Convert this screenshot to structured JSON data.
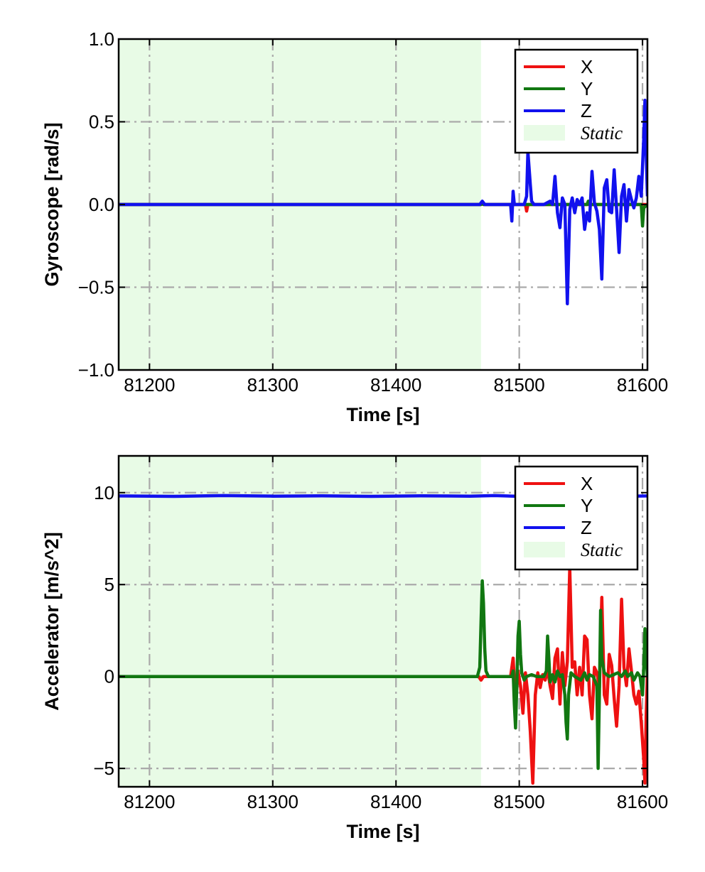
{
  "colors": {
    "x": "#ee1111",
    "y": "#117711",
    "z": "#1111ee",
    "static": "#e8fbe6",
    "grid": "#aaaaaa"
  },
  "chart_data": [
    {
      "type": "line",
      "xlabel": "Time [s]",
      "ylabel": "Gyroscope [rad/s]",
      "xlim": [
        81175,
        81604
      ],
      "ylim": [
        -1.0,
        1.0
      ],
      "xticks": [
        81200,
        81300,
        81400,
        81500,
        81600
      ],
      "yticks": [
        -1.0,
        -0.5,
        0.0,
        0.5,
        1.0
      ],
      "ytick_labels": [
        "−1.0",
        "−0.5",
        "0.0",
        "0.5",
        "1.0"
      ],
      "grid": true,
      "legend_position": "top-right",
      "static_region": [
        81175,
        81469
      ],
      "series": [
        {
          "name": "X",
          "color": "#ee1111",
          "points": [
            [
              81175,
              0
            ],
            [
              81469,
              0
            ],
            [
              81470,
              0.01
            ],
            [
              81471,
              0
            ],
            [
              81505,
              0
            ],
            [
              81506,
              -0.04
            ],
            [
              81507,
              0
            ],
            [
              81600,
              0
            ],
            [
              81604,
              0
            ]
          ]
        },
        {
          "name": "Y",
          "color": "#117711",
          "points": [
            [
              81175,
              0
            ],
            [
              81469,
              0
            ],
            [
              81470,
              0.01
            ],
            [
              81471,
              0
            ],
            [
              81555,
              0
            ],
            [
              81556,
              0.02
            ],
            [
              81557,
              0
            ],
            [
              81599,
              0
            ],
            [
              81600,
              -0.13
            ],
            [
              81601,
              -0.02
            ],
            [
              81604,
              0
            ]
          ]
        },
        {
          "name": "Z",
          "color": "#1111ee",
          "points": [
            [
              81175,
              0
            ],
            [
              81468,
              0
            ],
            [
              81470,
              0.02
            ],
            [
              81472,
              0
            ],
            [
              81493,
              0
            ],
            [
              81494,
              -0.1
            ],
            [
              81495,
              0.08
            ],
            [
              81496,
              0
            ],
            [
              81504,
              0
            ],
            [
              81506,
              0.05
            ],
            [
              81507,
              0.32
            ],
            [
              81509,
              0.12
            ],
            [
              81510,
              0.02
            ],
            [
              81512,
              0
            ],
            [
              81520,
              0
            ],
            [
              81525,
              0.02
            ],
            [
              81527,
              0
            ],
            [
              81529,
              0.17
            ],
            [
              81531,
              -0.05
            ],
            [
              81533,
              -0.14
            ],
            [
              81535,
              0.04
            ],
            [
              81537,
              0
            ],
            [
              81539,
              -0.6
            ],
            [
              81541,
              -0.03
            ],
            [
              81543,
              0.04
            ],
            [
              81545,
              -0.05
            ],
            [
              81547,
              0.03
            ],
            [
              81549,
              0
            ],
            [
              81551,
              0.04
            ],
            [
              81553,
              -0.15
            ],
            [
              81555,
              -0.05
            ],
            [
              81557,
              -0.1
            ],
            [
              81559,
              0.2
            ],
            [
              81561,
              0.01
            ],
            [
              81563,
              -0.04
            ],
            [
              81565,
              -0.15
            ],
            [
              81567,
              -0.45
            ],
            [
              81569,
              0.1
            ],
            [
              81571,
              0.15
            ],
            [
              81573,
              -0.04
            ],
            [
              81575,
              -0.05
            ],
            [
              81577,
              0.21
            ],
            [
              81579,
              -0.03
            ],
            [
              81581,
              -0.29
            ],
            [
              81583,
              0.05
            ],
            [
              81585,
              0.12
            ],
            [
              81587,
              -0.1
            ],
            [
              81589,
              0.09
            ],
            [
              81591,
              0.03
            ],
            [
              81593,
              -0.02
            ],
            [
              81595,
              0.04
            ],
            [
              81597,
              0.17
            ],
            [
              81599,
              0.05
            ],
            [
              81601,
              0.4
            ],
            [
              81602,
              0.63
            ],
            [
              81603,
              0.3
            ],
            [
              81604,
              0.05
            ]
          ]
        }
      ]
    },
    {
      "type": "line",
      "xlabel": "Time [s]",
      "ylabel": "Accelerator [m/s^2]",
      "xlim": [
        81175,
        81604
      ],
      "ylim": [
        -6.0,
        12.0
      ],
      "xticks": [
        81200,
        81300,
        81400,
        81500,
        81600
      ],
      "yticks": [
        -5,
        0,
        5,
        10
      ],
      "ytick_labels": [
        "−5",
        "0",
        "5",
        "10"
      ],
      "grid": true,
      "legend_position": "top-right",
      "static_region": [
        81175,
        81469
      ],
      "series": [
        {
          "name": "X",
          "color": "#ee1111",
          "points": [
            [
              81175,
              0
            ],
            [
              81467,
              0
            ],
            [
              81469,
              -0.2
            ],
            [
              81471,
              0
            ],
            [
              81493,
              0
            ],
            [
              81495,
              1.0
            ],
            [
              81497,
              -1.5
            ],
            [
              81499,
              0.3
            ],
            [
              81501,
              -0.5
            ],
            [
              81503,
              -2.0
            ],
            [
              81505,
              0.2
            ],
            [
              81507,
              -1.0
            ],
            [
              81509,
              -3.0
            ],
            [
              81511,
              -5.8
            ],
            [
              81513,
              -1.0
            ],
            [
              81515,
              0.2
            ],
            [
              81517,
              -0.6
            ],
            [
              81519,
              0.1
            ],
            [
              81521,
              -0.2
            ],
            [
              81523,
              0.4
            ],
            [
              81525,
              -0.5
            ],
            [
              81527,
              -1.2
            ],
            [
              81529,
              1.0
            ],
            [
              81531,
              1.5
            ],
            [
              81533,
              -1.5
            ],
            [
              81535,
              1.3
            ],
            [
              81537,
              -0.5
            ],
            [
              81539,
              0.8
            ],
            [
              81541,
              5.9
            ],
            [
              81543,
              0.5
            ],
            [
              81545,
              0.8
            ],
            [
              81547,
              -1.0
            ],
            [
              81549,
              0.5
            ],
            [
              81551,
              -1.0
            ],
            [
              81553,
              2.2
            ],
            [
              81555,
              2.0
            ],
            [
              81557,
              -1.0
            ],
            [
              81559,
              -2.3
            ],
            [
              81561,
              0.5
            ],
            [
              81563,
              0.2
            ],
            [
              81565,
              -0.6
            ],
            [
              81567,
              4.3
            ],
            [
              81569,
              -1.0
            ],
            [
              81571,
              -1.5
            ],
            [
              81573,
              1.2
            ],
            [
              81575,
              0.6
            ],
            [
              81577,
              -1.2
            ],
            [
              81579,
              -2.7
            ],
            [
              81581,
              -0.5
            ],
            [
              81583,
              4.2
            ],
            [
              81585,
              0.5
            ],
            [
              81587,
              -0.5
            ],
            [
              81589,
              1.5
            ],
            [
              81591,
              0.3
            ],
            [
              81593,
              -1.0
            ],
            [
              81595,
              -1.5
            ],
            [
              81597,
              -0.8
            ],
            [
              81599,
              -2.5
            ],
            [
              81601,
              -4.5
            ],
            [
              81602,
              -5.8
            ],
            [
              81603,
              -2.0
            ],
            [
              81604,
              0.2
            ]
          ]
        },
        {
          "name": "Y",
          "color": "#117711",
          "points": [
            [
              81175,
              0
            ],
            [
              81466,
              0
            ],
            [
              81468,
              0.5
            ],
            [
              81469,
              3.0
            ],
            [
              81470,
              5.2
            ],
            [
              81471,
              4.0
            ],
            [
              81472,
              1.5
            ],
            [
              81473,
              0.3
            ],
            [
              81475,
              0
            ],
            [
              81494,
              0
            ],
            [
              81495,
              0.3
            ],
            [
              81496,
              -1.5
            ],
            [
              81497,
              -2.8
            ],
            [
              81498,
              -0.5
            ],
            [
              81499,
              2.2
            ],
            [
              81500,
              3.0
            ],
            [
              81501,
              1.2
            ],
            [
              81502,
              0.2
            ],
            [
              81504,
              -0.2
            ],
            [
              81506,
              0
            ],
            [
              81510,
              0.1
            ],
            [
              81514,
              0
            ],
            [
              81520,
              0
            ],
            [
              81522,
              0.3
            ],
            [
              81523,
              2.2
            ],
            [
              81524,
              1.0
            ],
            [
              81525,
              -0.3
            ],
            [
              81527,
              0.1
            ],
            [
              81529,
              -0.3
            ],
            [
              81531,
              0.3
            ],
            [
              81533,
              0
            ],
            [
              81535,
              0.1
            ],
            [
              81537,
              -1.0
            ],
            [
              81538,
              -2.5
            ],
            [
              81539,
              -3.4
            ],
            [
              81540,
              -1.0
            ],
            [
              81542,
              0.2
            ],
            [
              81545,
              0
            ],
            [
              81550,
              -0.2
            ],
            [
              81553,
              0.2
            ],
            [
              81555,
              -0.2
            ],
            [
              81557,
              0.1
            ],
            [
              81560,
              0
            ],
            [
              81563,
              -0.5
            ],
            [
              81564,
              -5.0
            ],
            [
              81565,
              -1.0
            ],
            [
              81566,
              3.6
            ],
            [
              81567,
              1.0
            ],
            [
              81569,
              0.2
            ],
            [
              81573,
              0
            ],
            [
              81580,
              0.2
            ],
            [
              81583,
              0
            ],
            [
              81586,
              0.3
            ],
            [
              81588,
              0
            ],
            [
              81591,
              0.2
            ],
            [
              81593,
              -0.2
            ],
            [
              81596,
              0.2
            ],
            [
              81598,
              0
            ],
            [
              81600,
              -1.0
            ],
            [
              81601,
              0.5
            ],
            [
              81602,
              2.6
            ],
            [
              81603,
              1.0
            ],
            [
              81604,
              0
            ]
          ]
        },
        {
          "name": "Z",
          "color": "#1111ee",
          "points": [
            [
              81175,
              9.82
            ],
            [
              81220,
              9.8
            ],
            [
              81260,
              9.84
            ],
            [
              81300,
              9.81
            ],
            [
              81340,
              9.83
            ],
            [
              81380,
              9.8
            ],
            [
              81420,
              9.83
            ],
            [
              81460,
              9.81
            ],
            [
              81480,
              9.84
            ],
            [
              81500,
              9.8
            ],
            [
              81520,
              9.83
            ],
            [
              81540,
              9.81
            ],
            [
              81560,
              9.83
            ],
            [
              81580,
              9.8
            ],
            [
              81604,
              9.82
            ]
          ]
        }
      ]
    }
  ]
}
